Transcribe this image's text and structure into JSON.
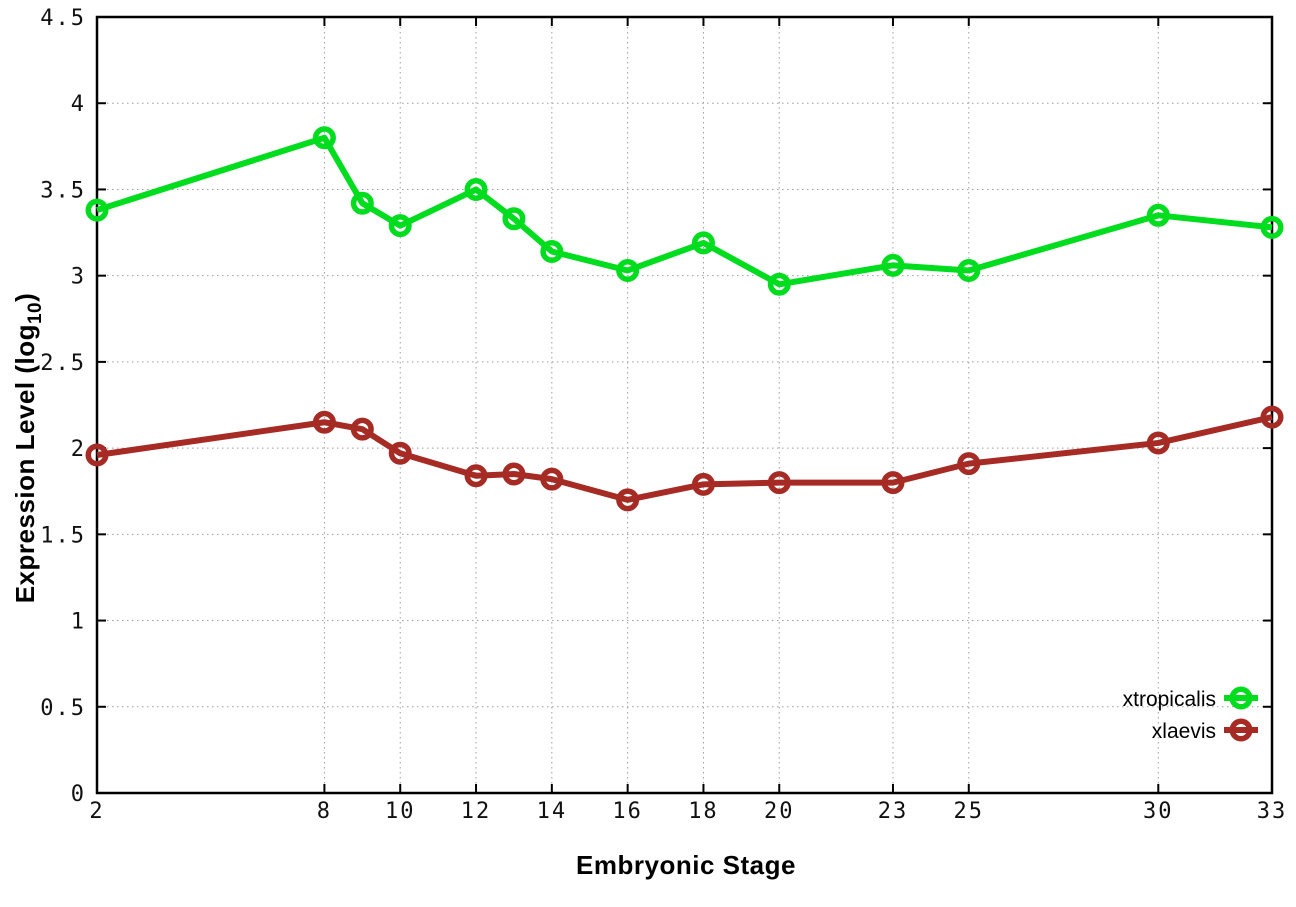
{
  "chart_data": {
    "type": "line",
    "xlabel": "Embryonic Stage",
    "ylabel": {
      "pre": "Expression Level (log",
      "sub": "10",
      "post": ")"
    },
    "x": [
      2,
      8,
      9,
      10,
      12,
      13,
      14,
      16,
      18,
      20,
      23,
      25,
      30,
      33
    ],
    "series": [
      {
        "name": "xtropicalis",
        "color": "#00dc1e",
        "values": [
          3.38,
          3.8,
          3.42,
          3.29,
          3.5,
          3.33,
          3.14,
          3.03,
          3.19,
          2.95,
          3.06,
          3.03,
          3.35,
          3.28
        ]
      },
      {
        "name": "xlaevis",
        "color": "#a62b24",
        "values": [
          1.96,
          2.15,
          2.11,
          1.97,
          1.84,
          1.85,
          1.82,
          1.7,
          1.79,
          1.8,
          1.8,
          1.91,
          2.03,
          2.18
        ]
      }
    ],
    "x_ticks": [
      2,
      8,
      10,
      12,
      14,
      16,
      18,
      20,
      23,
      25,
      30,
      33
    ],
    "y_ticks": [
      "0",
      "0.5",
      "1",
      "1.5",
      "2",
      "2.5",
      "3",
      "3.5",
      "4",
      "4.5"
    ],
    "xlim": [
      2,
      33
    ],
    "ylim": [
      0,
      4.5
    ],
    "grid": true,
    "grid_style": "dotted",
    "marker": "open-circle",
    "legend_position": "bottom-right"
  },
  "colors": {
    "background": "#ffffff",
    "axis": "#000000",
    "grid": "#9e9e9e",
    "tick_text": "#111111"
  }
}
